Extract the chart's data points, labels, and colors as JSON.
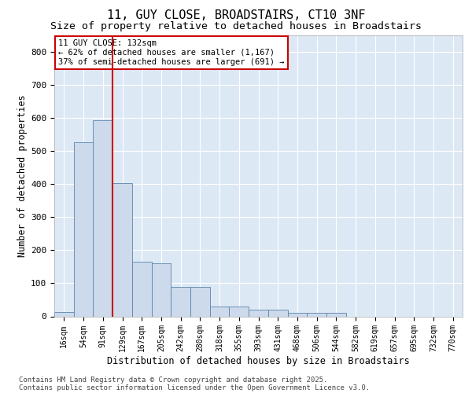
{
  "title1": "11, GUY CLOSE, BROADSTAIRS, CT10 3NF",
  "title2": "Size of property relative to detached houses in Broadstairs",
  "xlabel": "Distribution of detached houses by size in Broadstairs",
  "ylabel": "Number of detached properties",
  "categories": [
    "16sqm",
    "54sqm",
    "91sqm",
    "129sqm",
    "167sqm",
    "205sqm",
    "242sqm",
    "280sqm",
    "318sqm",
    "355sqm",
    "393sqm",
    "431sqm",
    "468sqm",
    "506sqm",
    "544sqm",
    "582sqm",
    "619sqm",
    "657sqm",
    "695sqm",
    "732sqm",
    "770sqm"
  ],
  "values": [
    12,
    527,
    594,
    402,
    165,
    160,
    88,
    88,
    30,
    30,
    20,
    20,
    10,
    10,
    10,
    0,
    0,
    0,
    0,
    0,
    0
  ],
  "bar_color": "#ccdaeb",
  "bar_edge_color": "#5a84aa",
  "vline_color": "#cc0000",
  "annotation_text": "11 GUY CLOSE: 132sqm\n← 62% of detached houses are smaller (1,167)\n37% of semi-detached houses are larger (691) →",
  "annotation_edge_color": "#cc0000",
  "ylim_max": 850,
  "yticks": [
    0,
    100,
    200,
    300,
    400,
    500,
    600,
    700,
    800
  ],
  "background_color": "#dde8f5",
  "footer_text": "Contains HM Land Registry data © Crown copyright and database right 2025.\nContains public sector information licensed under the Open Government Licence v3.0.",
  "title_fontsize": 11,
  "subtitle_fontsize": 9.5,
  "tick_fontsize": 7,
  "ylabel_fontsize": 8.5,
  "xlabel_fontsize": 8.5,
  "footer_fontsize": 6.5,
  "annot_fontsize": 7.5
}
